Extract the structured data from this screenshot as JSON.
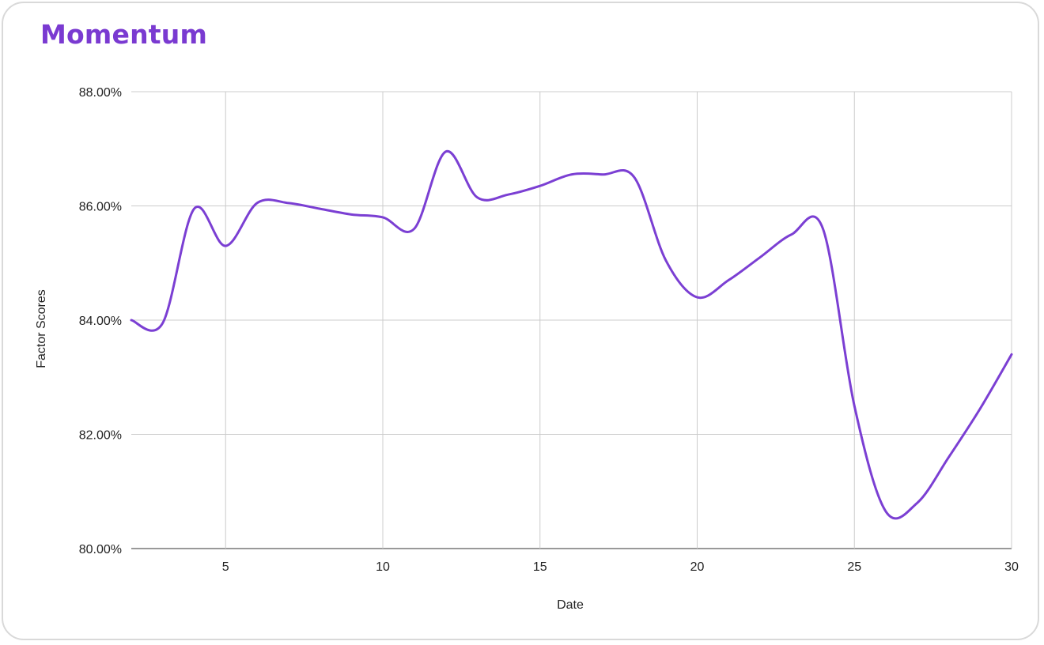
{
  "colors": {
    "accent": "#7a3ad1",
    "line": "#7b3fd3",
    "grid": "#cccccc",
    "card_border": "#d9d9d9"
  },
  "chart_data": {
    "type": "line",
    "title": "Momentum",
    "xlabel": "Date",
    "ylabel": "Factor Scores",
    "xlim": [
      2,
      30
    ],
    "ylim": [
      80,
      88
    ],
    "x_ticks": [
      5,
      10,
      15,
      20,
      25,
      30
    ],
    "y_ticks": [
      80,
      82,
      84,
      86,
      88
    ],
    "y_tick_labels": [
      "80.00%",
      "82.00%",
      "84.00%",
      "86.00%",
      "88.00%"
    ],
    "grid": true,
    "legend": "none",
    "smooth": true,
    "series": [
      {
        "x": [
          2,
          3,
          4,
          5,
          6,
          7,
          8,
          9,
          10,
          11,
          12,
          13,
          14,
          15,
          16,
          17,
          18,
          19,
          20,
          21,
          22,
          23,
          24,
          25,
          26,
          27,
          28,
          29,
          30
        ],
        "values": [
          84.0,
          83.95,
          85.95,
          85.3,
          86.05,
          86.05,
          85.95,
          85.85,
          85.8,
          85.6,
          86.95,
          86.15,
          86.2,
          86.35,
          86.55,
          86.55,
          86.5,
          85.05,
          84.4,
          84.7,
          85.1,
          85.5,
          85.6,
          82.5,
          80.65,
          80.8,
          81.6,
          82.45,
          83.4
        ]
      }
    ]
  }
}
